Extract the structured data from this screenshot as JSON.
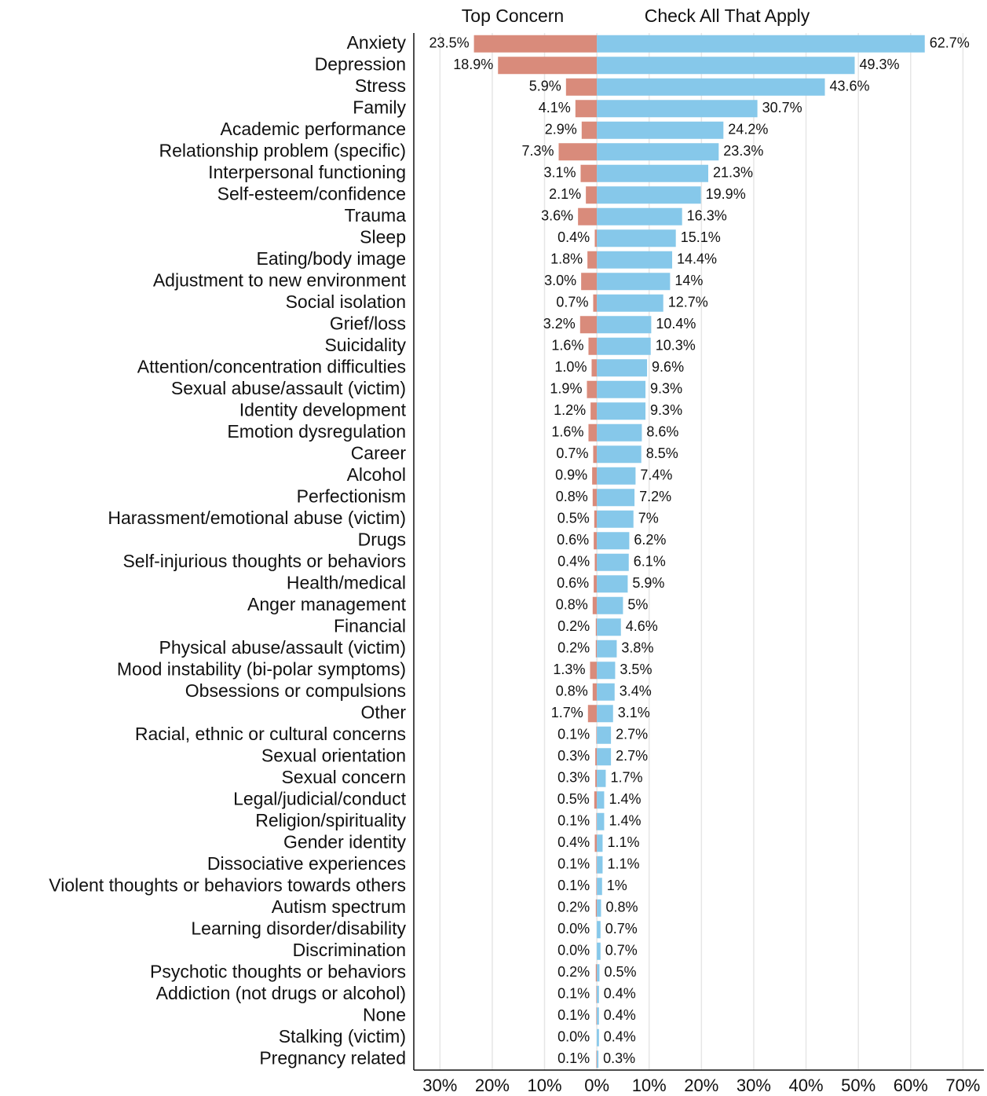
{
  "chart_data": {
    "type": "diverging_bar",
    "categories": [
      "Anxiety",
      "Depression",
      "Stress",
      "Family",
      "Academic performance",
      "Relationship problem (specific)",
      "Interpersonal functioning",
      "Self-esteem/confidence",
      "Trauma",
      "Sleep",
      "Eating/body image",
      "Adjustment to new environment",
      "Social isolation",
      "Grief/loss",
      "Suicidality",
      "Attention/concentration difficulties",
      "Sexual abuse/assault (victim)",
      "Identity development",
      "Emotion dysregulation",
      "Career",
      "Alcohol",
      "Perfectionism",
      "Harassment/emotional abuse (victim)",
      "Drugs",
      "Self-injurious thoughts or behaviors",
      "Health/medical",
      "Anger management",
      "Financial",
      "Physical abuse/assault (victim)",
      "Mood instability (bi-polar symptoms)",
      "Obsessions or compulsions",
      "Other",
      "Racial, ethnic or cultural concerns",
      "Sexual orientation",
      "Sexual concern",
      "Legal/judicial/conduct",
      "Religion/spirituality",
      "Gender identity",
      "Dissociative experiences",
      "Violent thoughts or behaviors towards others",
      "Autism spectrum",
      "Learning disorder/disability",
      "Discrimination",
      "Psychotic thoughts or behaviors",
      "Addiction (not drugs or alcohol)",
      "None",
      "Stalking (victim)",
      "Pregnancy related"
    ],
    "series": [
      {
        "name": "Top Concern",
        "color": "#d98b7b",
        "values": [
          23.5,
          18.9,
          5.9,
          4.1,
          2.9,
          7.3,
          3.1,
          2.1,
          3.6,
          0.4,
          1.8,
          3.0,
          0.7,
          3.2,
          1.6,
          1.0,
          1.9,
          1.2,
          1.6,
          0.7,
          0.9,
          0.8,
          0.5,
          0.6,
          0.4,
          0.6,
          0.8,
          0.2,
          0.2,
          1.3,
          0.8,
          1.7,
          0.1,
          0.3,
          0.3,
          0.5,
          0.1,
          0.4,
          0.1,
          0.1,
          0.2,
          0.0,
          0.0,
          0.2,
          0.1,
          0.1,
          0.0,
          0.1
        ],
        "value_labels": [
          "23.5%",
          "18.9%",
          "5.9%",
          "4.1%",
          "2.9%",
          "7.3%",
          "3.1%",
          "2.1%",
          "3.6%",
          "0.4%",
          "1.8%",
          "3.0%",
          "0.7%",
          "3.2%",
          "1.6%",
          "1.0%",
          "1.9%",
          "1.2%",
          "1.6%",
          "0.7%",
          "0.9%",
          "0.8%",
          "0.5%",
          "0.6%",
          "0.4%",
          "0.6%",
          "0.8%",
          "0.2%",
          "0.2%",
          "1.3%",
          "0.8%",
          "1.7%",
          "0.1%",
          "0.3%",
          "0.3%",
          "0.5%",
          "0.1%",
          "0.4%",
          "0.1%",
          "0.1%",
          "0.2%",
          "0.0%",
          "0.0%",
          "0.2%",
          "0.1%",
          "0.1%",
          "0.0%",
          "0.1%"
        ]
      },
      {
        "name": "Check All That Apply",
        "color": "#86c8ea",
        "values": [
          62.7,
          49.3,
          43.6,
          30.7,
          24.2,
          23.3,
          21.3,
          19.9,
          16.3,
          15.1,
          14.4,
          14,
          12.7,
          10.4,
          10.3,
          9.6,
          9.3,
          9.3,
          8.6,
          8.5,
          7.4,
          7.2,
          7,
          6.2,
          6.1,
          5.9,
          5,
          4.6,
          3.8,
          3.5,
          3.4,
          3.1,
          2.7,
          2.7,
          1.7,
          1.4,
          1.4,
          1.1,
          1.1,
          1,
          0.8,
          0.7,
          0.7,
          0.5,
          0.4,
          0.4,
          0.4,
          0.3
        ],
        "value_labels": [
          "62.7%",
          "49.3%",
          "43.6%",
          "30.7%",
          "24.2%",
          "23.3%",
          "21.3%",
          "19.9%",
          "16.3%",
          "15.1%",
          "14.4%",
          "14%",
          "12.7%",
          "10.4%",
          "10.3%",
          "9.6%",
          "9.3%",
          "9.3%",
          "8.6%",
          "8.5%",
          "7.4%",
          "7.2%",
          "7%",
          "6.2%",
          "6.1%",
          "5.9%",
          "5%",
          "4.6%",
          "3.8%",
          "3.5%",
          "3.4%",
          "3.1%",
          "2.7%",
          "2.7%",
          "1.7%",
          "1.4%",
          "1.4%",
          "1.1%",
          "1.1%",
          "1%",
          "0.8%",
          "0.7%",
          "0.7%",
          "0.5%",
          "0.4%",
          "0.4%",
          "0.4%",
          "0.3%"
        ]
      }
    ],
    "xlim": [
      -35,
      74
    ],
    "xticks": [
      {
        "value": -30,
        "label": "30%"
      },
      {
        "value": -20,
        "label": "20%"
      },
      {
        "value": -10,
        "label": "10%"
      },
      {
        "value": 0,
        "label": "0%"
      },
      {
        "value": 10,
        "label": "10%"
      },
      {
        "value": 20,
        "label": "20%"
      },
      {
        "value": 30,
        "label": "30%"
      },
      {
        "value": 40,
        "label": "40%"
      },
      {
        "value": 50,
        "label": "50%"
      },
      {
        "value": 60,
        "label": "60%"
      },
      {
        "value": 70,
        "label": "70%"
      }
    ],
    "grid": true
  }
}
